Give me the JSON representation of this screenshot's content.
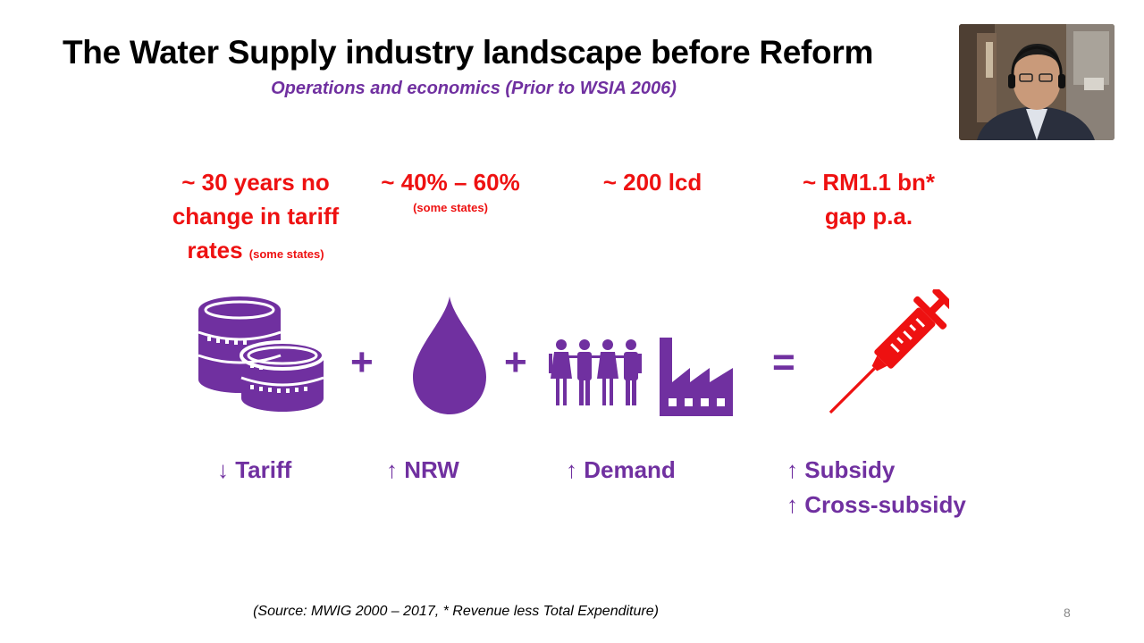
{
  "slide": {
    "title": "The Water Supply industry landscape before Reform",
    "subtitle": "Operations and economics (Prior to WSIA 2006)",
    "stats": {
      "tariff_line1": "~ 30 years no",
      "tariff_line2": "change in tariff",
      "tariff_line3": "rates",
      "tariff_note": "(some states)",
      "nrw_value": "~ 40% – 60%",
      "nrw_note": "(some states)",
      "demand_value": "~ 200 lcd",
      "gap_line1": "~ RM1.1 bn*",
      "gap_line2": "gap p.a."
    },
    "operators": {
      "plus1": "+",
      "plus2": "+",
      "equals": "="
    },
    "labels": {
      "tariff": "↓ Tariff",
      "nrw": "↑ NRW",
      "demand": "↑ Demand",
      "subsidy": "↑ Subsidy",
      "cross_subsidy": "↑ Cross-subsidy"
    },
    "source": "(Source: MWIG 2000 – 2017, * Revenue less Total Expenditure)",
    "page_number": "8"
  },
  "icons": [
    "coins-icon",
    "water-drop-icon",
    "people-icon",
    "factory-icon",
    "syringe-icon"
  ],
  "colors": {
    "purple": "#7030a0",
    "red": "#ee1111",
    "title": "#000000"
  }
}
